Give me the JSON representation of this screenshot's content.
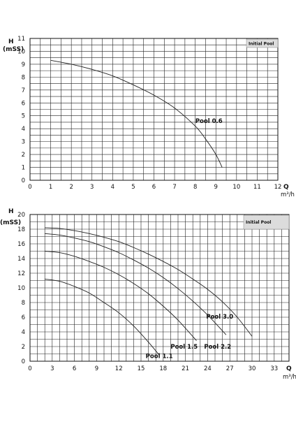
{
  "chart_data": [
    {
      "type": "line",
      "legend": "Initial Pool",
      "legend_position": "top-right",
      "grid": true,
      "xlabel": "Q",
      "xunit": "m³/h",
      "ylabel": "H",
      "yunit": "(mSS)",
      "xlim": [
        0,
        12
      ],
      "ylim": [
        0,
        11
      ],
      "xticks": [
        "0",
        "1",
        "2",
        "3",
        "4",
        "5",
        "6",
        "7",
        "8",
        "9",
        "10",
        "11",
        "12"
      ],
      "yticks": [
        "0",
        "1",
        "2",
        "3",
        "4",
        "5",
        "6",
        "7",
        "8",
        "9",
        "10",
        "11"
      ],
      "series": [
        {
          "name": "Pool 0.6",
          "x": [
            1.0,
            2.0,
            3.0,
            4.0,
            5.0,
            6.0,
            7.0,
            8.0,
            8.5,
            9.0,
            9.3
          ],
          "y": [
            9.3,
            9.0,
            8.6,
            8.1,
            7.4,
            6.6,
            5.6,
            4.2,
            3.2,
            2.0,
            1.0
          ]
        }
      ]
    },
    {
      "type": "line",
      "legend": "Initial Pool",
      "legend_position": "top-right",
      "grid": true,
      "xlabel": "Q",
      "xunit": "m³/h",
      "ylabel": "H",
      "yunit": "(mSS)",
      "xlim": [
        0,
        35
      ],
      "ylim": [
        0,
        20
      ],
      "xticks": [
        "0",
        "3",
        "6",
        "9",
        "12",
        "15",
        "18",
        "21",
        "24",
        "27",
        "30",
        "33"
      ],
      "xtick_values": [
        0,
        3,
        6,
        9,
        12,
        15,
        18,
        21,
        24,
        27,
        30,
        33
      ],
      "yticks": [
        "0",
        "2",
        "4",
        "6",
        "8",
        "10",
        "12",
        "14",
        "16",
        "18",
        "20"
      ],
      "series": [
        {
          "name": "Pool 1.1",
          "x": [
            2,
            4,
            6,
            8,
            10,
            12,
            14,
            16,
            17.5
          ],
          "y": [
            11.2,
            10.9,
            10.2,
            9.3,
            8.0,
            6.6,
            4.8,
            2.6,
            0.8
          ]
        },
        {
          "name": "Pool 1.5",
          "x": [
            2,
            4,
            6,
            8,
            10,
            12,
            14,
            16,
            18,
            20,
            22.5
          ],
          "y": [
            15.0,
            14.8,
            14.3,
            13.6,
            12.8,
            11.8,
            10.6,
            9.2,
            7.5,
            5.6,
            2.8
          ]
        },
        {
          "name": "Pool 2.2",
          "x": [
            2,
            4,
            6,
            8,
            10,
            12,
            14,
            16,
            18,
            20,
            22,
            24,
            26.5
          ],
          "y": [
            17.4,
            17.2,
            16.8,
            16.3,
            15.6,
            14.8,
            13.8,
            12.7,
            11.4,
            9.9,
            8.2,
            6.3,
            3.6
          ]
        },
        {
          "name": "Pool 3.0",
          "x": [
            2,
            4,
            6,
            8,
            10,
            12,
            14,
            16,
            18,
            20,
            22,
            24,
            26,
            28,
            30
          ],
          "y": [
            18.2,
            18.1,
            17.8,
            17.4,
            16.9,
            16.3,
            15.5,
            14.6,
            13.6,
            12.5,
            11.2,
            9.8,
            8.1,
            6.0,
            3.4
          ]
        }
      ]
    }
  ]
}
